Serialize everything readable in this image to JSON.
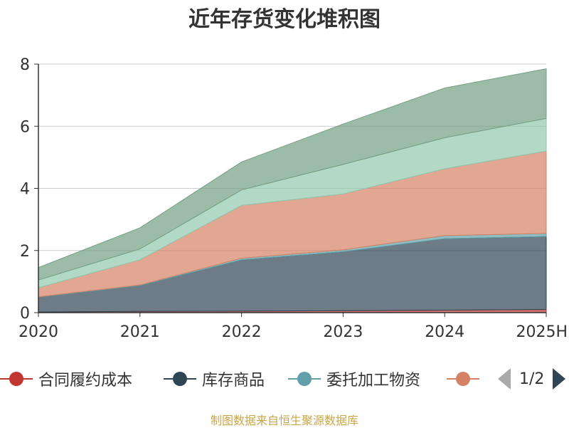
{
  "chart_data": {
    "type": "area",
    "stacked": true,
    "title": "近年存货变化堆积图",
    "categories": [
      "2020",
      "2021",
      "2022",
      "2023",
      "2024",
      "2025H"
    ],
    "y_ticks": [
      "0",
      "2",
      "4",
      "6",
      "8"
    ],
    "ylim": [
      0,
      8
    ],
    "grid": true,
    "series": [
      {
        "name": "合同履约成本",
        "color": "#c23531",
        "values": [
          0.02,
          0.04,
          0.05,
          0.06,
          0.08,
          0.1
        ]
      },
      {
        "name": "库存商品",
        "color": "#2f4554",
        "values": [
          0.48,
          0.83,
          1.65,
          1.9,
          2.3,
          2.35
        ]
      },
      {
        "name": "委托加工物资",
        "color": "#61a0a8",
        "values": [
          0.01,
          0.02,
          0.05,
          0.06,
          0.1,
          0.1
        ]
      },
      {
        "name": "",
        "color": "#d48265",
        "values": [
          0.29,
          0.81,
          1.7,
          1.8,
          2.15,
          2.65
        ]
      },
      {
        "name": "",
        "color": "#91c7ae",
        "values": [
          0.25,
          0.35,
          0.5,
          0.95,
          1.0,
          1.05
        ]
      },
      {
        "name": "",
        "color": "#749f83",
        "values": [
          0.4,
          0.68,
          0.9,
          1.3,
          1.6,
          1.6
        ]
      }
    ],
    "legend_position": "bottom"
  },
  "legend": {
    "page_text": "1/2"
  },
  "source_text": "制图数据来自恒生聚源数据库"
}
